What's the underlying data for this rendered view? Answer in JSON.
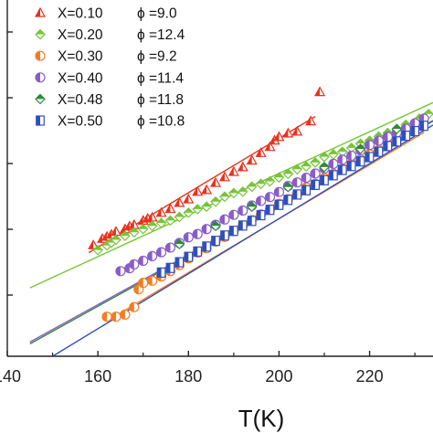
{
  "chart_data": {
    "type": "scatter",
    "title": "",
    "xlabel": "T(K)",
    "ylabel": "",
    "xlim": [
      140,
      234
    ],
    "ylim": [
      0.0,
      1.0
    ],
    "x_ticks": [
      140,
      160,
      180,
      200,
      220
    ],
    "x_tick_labels": [
      "140",
      "160",
      "180",
      "200",
      "220"
    ],
    "grid": false,
    "legend_position": "top-left",
    "series": [
      {
        "name": "X=0.10",
        "phi": "ϕ =9.0",
        "marker": "triangle",
        "color": "#e8321e",
        "x": [
          159,
          161,
          162,
          163,
          164,
          166,
          167,
          168,
          170,
          171,
          172,
          174,
          176,
          178,
          180,
          182,
          184,
          186,
          188,
          190,
          192,
          194,
          196,
          198,
          199,
          200,
          202,
          204,
          207,
          209
        ],
        "y": [
          0.312,
          0.33,
          0.336,
          0.342,
          0.35,
          0.357,
          0.365,
          0.369,
          0.381,
          0.387,
          0.39,
          0.403,
          0.414,
          0.431,
          0.441,
          0.462,
          0.467,
          0.487,
          0.503,
          0.518,
          0.531,
          0.55,
          0.571,
          0.588,
          0.606,
          0.616,
          0.626,
          0.631,
          0.66,
          0.742
        ],
        "fit": [
          [
            158,
            0.291
          ],
          [
            208,
            0.673
          ]
        ]
      },
      {
        "name": "X=0.20",
        "phi": "ϕ =12.4",
        "marker": "diamond-half",
        "color": "#77c43a",
        "x": [
          160,
          162,
          163,
          164,
          166,
          168,
          170,
          172,
          174,
          176,
          178,
          180,
          182,
          184,
          186,
          188,
          190,
          192,
          194,
          196,
          198,
          200,
          202,
          204,
          206,
          208,
          210,
          212,
          214,
          216,
          218,
          220,
          222,
          224,
          226,
          228,
          231,
          233
        ],
        "y": [
          0.298,
          0.311,
          0.319,
          0.327,
          0.338,
          0.348,
          0.357,
          0.366,
          0.374,
          0.381,
          0.391,
          0.403,
          0.413,
          0.42,
          0.434,
          0.448,
          0.458,
          0.462,
          0.476,
          0.484,
          0.491,
          0.502,
          0.512,
          0.525,
          0.533,
          0.544,
          0.56,
          0.567,
          0.574,
          0.585,
          0.597,
          0.605,
          0.617,
          0.627,
          0.638,
          0.65,
          0.667,
          0.68
        ],
        "fit": [
          [
            145,
            0.192
          ],
          [
            234,
            0.712
          ]
        ]
      },
      {
        "name": "X=0.30",
        "phi": "ϕ =9.2",
        "marker": "circle-half",
        "color": "#f47c20",
        "x": [
          162,
          164,
          166,
          168,
          169,
          170,
          172,
          174,
          176,
          178,
          180,
          182,
          184,
          186,
          188,
          190,
          192,
          194,
          196,
          198,
          200,
          202,
          204,
          206,
          208,
          210,
          212,
          214,
          216,
          218,
          220,
          222,
          224,
          226
        ],
        "y": [
          0.111,
          0.111,
          0.117,
          0.138,
          0.188,
          0.206,
          0.212,
          0.224,
          0.239,
          0.256,
          0.275,
          0.291,
          0.303,
          0.322,
          0.335,
          0.351,
          0.367,
          0.382,
          0.398,
          0.412,
          0.428,
          0.441,
          0.454,
          0.474,
          0.484,
          0.5,
          0.512,
          0.525,
          0.54,
          0.552,
          0.567,
          0.579,
          0.592,
          0.606
        ],
        "fit": [
          [
            164,
            0.114
          ],
          [
            232,
            0.628
          ]
        ]
      },
      {
        "name": "X=0.40",
        "phi": "ϕ =11.4",
        "marker": "circle-half",
        "color": "#8a5cc8",
        "x": [
          165,
          167,
          168,
          170,
          172,
          174,
          176,
          178,
          180,
          182,
          184,
          186,
          188,
          190,
          192,
          194,
          196,
          198,
          200,
          202,
          204,
          206,
          208,
          210,
          212,
          214,
          216,
          218,
          220,
          222,
          224,
          226,
          228,
          230,
          232
        ],
        "y": [
          0.239,
          0.247,
          0.258,
          0.268,
          0.281,
          0.292,
          0.305,
          0.318,
          0.334,
          0.343,
          0.357,
          0.369,
          0.384,
          0.397,
          0.409,
          0.423,
          0.436,
          0.447,
          0.461,
          0.478,
          0.488,
          0.501,
          0.513,
          0.527,
          0.54,
          0.552,
          0.563,
          0.578,
          0.593,
          0.605,
          0.616,
          0.628,
          0.639,
          0.654,
          0.667
        ],
        "fit": [
          [
            145,
            0.04
          ],
          [
            234,
            0.662
          ]
        ]
      },
      {
        "name": "X=0.48",
        "phi": "ϕ =11.8",
        "marker": "diamond-half",
        "color": "#2f8a3a",
        "x": [
          178,
          186,
          194,
          202,
          210,
          218,
          226
        ],
        "y": [
          0.315,
          0.366,
          0.42,
          0.475,
          0.531,
          0.582,
          0.638
        ],
        "fit": [
          [
            145,
            0.035
          ],
          [
            234,
            0.66
          ]
        ]
      },
      {
        "name": "X=0.50",
        "phi": "ϕ =10.8",
        "marker": "square-half",
        "color": "#2f4fc0",
        "x": [
          174,
          176,
          178,
          180,
          182,
          184,
          186,
          188,
          190,
          192,
          194,
          196,
          198,
          200,
          202,
          204,
          206,
          208,
          210,
          212,
          214,
          216,
          218,
          220,
          222,
          224,
          226,
          228,
          230,
          232
        ],
        "y": [
          0.235,
          0.248,
          0.264,
          0.279,
          0.294,
          0.308,
          0.324,
          0.339,
          0.352,
          0.367,
          0.38,
          0.396,
          0.411,
          0.425,
          0.439,
          0.454,
          0.466,
          0.481,
          0.494,
          0.508,
          0.523,
          0.534,
          0.547,
          0.559,
          0.574,
          0.59,
          0.603,
          0.619,
          0.632,
          0.647
        ],
        "fit": [
          [
            150,
            0.0
          ],
          [
            234,
            0.649
          ]
        ]
      }
    ]
  }
}
